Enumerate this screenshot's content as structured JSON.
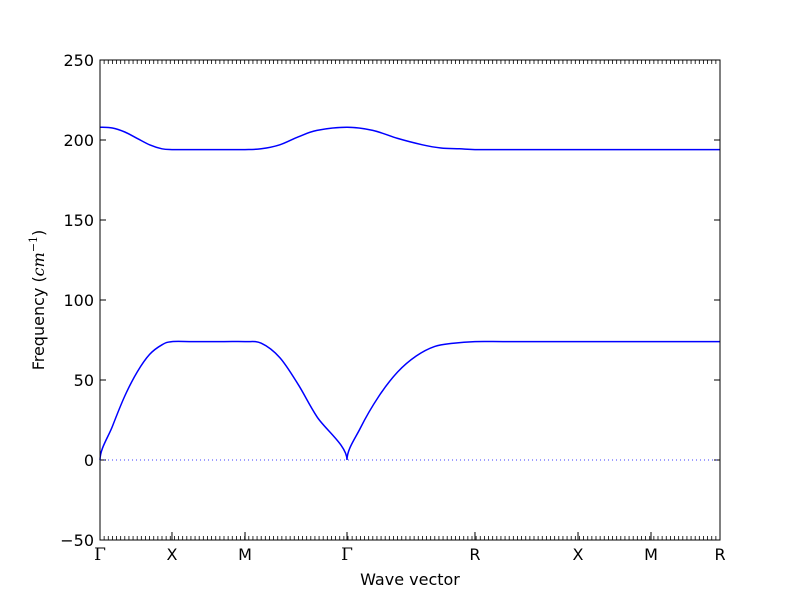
{
  "chart_data": {
    "type": "line",
    "title": "",
    "xlabel": "Wave vector",
    "ylabel_text": "Frequency (",
    "ylabel_unit": "cm",
    "ylabel_exp": "−1",
    "ylabel_close": ")",
    "ylabel": "Frequency (cm⁻¹)",
    "ylim": [
      -50,
      250
    ],
    "xlim": [
      0,
      1
    ],
    "yticks": [
      {
        "value": -50,
        "label": "−50"
      },
      {
        "value": 0,
        "label": "0"
      },
      {
        "value": 50,
        "label": "50"
      },
      {
        "value": 100,
        "label": "100"
      },
      {
        "value": 150,
        "label": "150"
      },
      {
        "value": 200,
        "label": "200"
      },
      {
        "value": 250,
        "label": "250"
      }
    ],
    "xticks": [
      {
        "value": 0.0,
        "label": "Γ",
        "greek": true
      },
      {
        "value": 0.1161,
        "label": "X"
      },
      {
        "value": 0.2339,
        "label": "M"
      },
      {
        "value": 0.3984,
        "label": "Γ",
        "greek": true
      },
      {
        "value": 0.6048,
        "label": "R"
      },
      {
        "value": 0.771,
        "label": "X"
      },
      {
        "value": 0.8887,
        "label": "M"
      },
      {
        "value": 1.0,
        "label": "R"
      }
    ],
    "zero_line": true,
    "colors": {
      "series": "#0000ff",
      "zero": "#0000ff",
      "axes": "#000000"
    },
    "series": [
      {
        "band": "acoustic",
        "x": [
          0.0,
          0.02,
          0.04,
          0.06,
          0.08,
          0.1,
          0.1161,
          0.15,
          0.2,
          0.2339,
          0.26,
          0.29,
          0.32,
          0.35,
          0.3984,
          0.42,
          0.45,
          0.48,
          0.51,
          0.54,
          0.57,
          0.6048,
          0.65,
          0.7,
          0.75,
          0.771,
          0.82,
          0.8887,
          0.94,
          1.0
        ],
        "y": [
          0,
          21,
          40,
          55,
          66,
          72,
          74,
          74,
          74,
          74,
          73,
          64,
          47,
          27,
          0,
          20,
          40,
          55,
          65,
          71,
          73,
          74,
          74,
          74,
          74,
          74,
          74,
          74,
          74,
          74
        ]
      },
      {
        "band": "optical",
        "x": [
          0.0,
          0.02,
          0.04,
          0.06,
          0.08,
          0.1,
          0.1161,
          0.15,
          0.2,
          0.2339,
          0.26,
          0.29,
          0.32,
          0.35,
          0.3984,
          0.44,
          0.48,
          0.52,
          0.55,
          0.58,
          0.6048,
          0.65,
          0.7,
          0.75,
          0.771,
          0.82,
          0.8887,
          0.94,
          1.0
        ],
        "y": [
          208,
          207.5,
          205,
          201,
          197,
          194.5,
          194,
          194,
          194,
          194,
          194.5,
          197,
          202,
          206,
          208,
          206,
          201,
          197,
          195,
          194.5,
          194,
          194,
          194,
          194,
          194,
          194,
          194,
          194,
          194
        ]
      }
    ]
  }
}
